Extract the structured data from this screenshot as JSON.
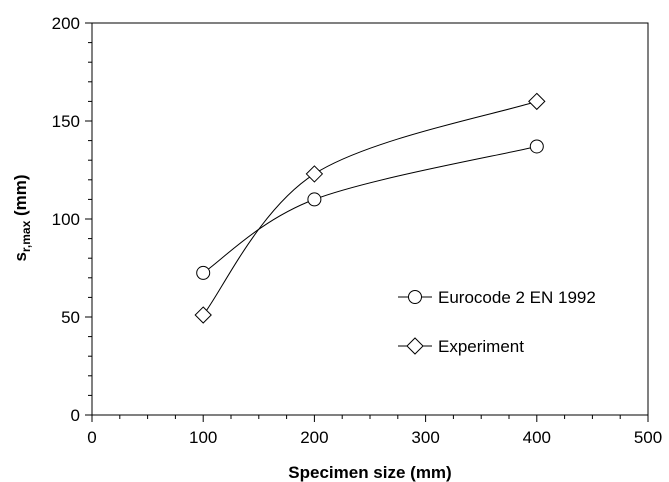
{
  "chart_data": {
    "type": "line",
    "title": "",
    "xlabel": "Specimen size (mm)",
    "ylabel_main": "s",
    "ylabel_sub": "r,max",
    "ylabel_unit": " (mm)",
    "xlim": [
      0,
      500
    ],
    "ylim": [
      0,
      200
    ],
    "x_ticks": [
      0,
      100,
      200,
      300,
      400,
      500
    ],
    "y_ticks": [
      0,
      50,
      100,
      150,
      200
    ],
    "grid": false,
    "legend_position": "right",
    "series": [
      {
        "name": "Eurocode 2 EN 1992",
        "marker": "circle",
        "x": [
          100,
          200,
          400
        ],
        "values": [
          72.5,
          110,
          137
        ]
      },
      {
        "name": "Experiment",
        "marker": "diamond",
        "x": [
          100,
          200,
          400
        ],
        "values": [
          51,
          123,
          160
        ]
      }
    ]
  }
}
